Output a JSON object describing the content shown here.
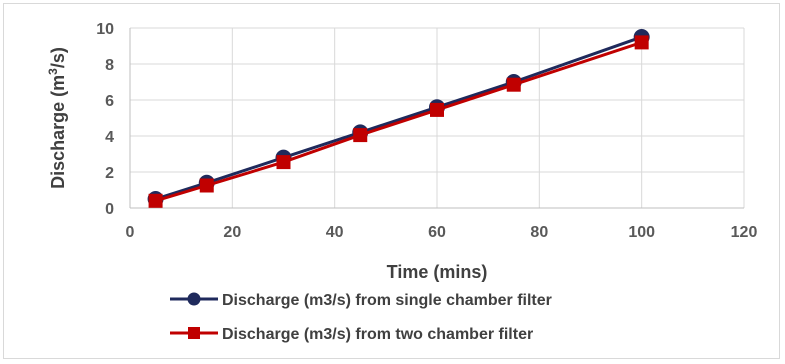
{
  "chart_data": {
    "type": "line",
    "xlabel": "Time (mins)",
    "ylabel_main": "Discharge (m",
    "ylabel_sup": "3",
    "ylabel_tail": "/s)",
    "x_ticks": [
      0,
      20,
      40,
      60,
      80,
      100,
      120
    ],
    "y_ticks": [
      0,
      2,
      4,
      6,
      8,
      10
    ],
    "xlim": [
      0,
      120
    ],
    "ylim": [
      0,
      10
    ],
    "grid": "major gridlines on both axes",
    "legend_position": "bottom",
    "series": [
      {
        "name": "Discharge (m3/s) from single chamber filter",
        "color": "#1f2a5c",
        "marker": "circle",
        "x": [
          5,
          15,
          30,
          45,
          60,
          75,
          100
        ],
        "y": [
          0.5,
          1.4,
          2.8,
          4.2,
          5.6,
          7.0,
          9.5
        ]
      },
      {
        "name": "Discharge (m3/s) from two chamber filter",
        "color": "#c00000",
        "marker": "square",
        "x": [
          5,
          15,
          30,
          45,
          60,
          75,
          100
        ],
        "y": [
          0.4,
          1.25,
          2.55,
          4.05,
          5.45,
          6.85,
          9.2
        ]
      }
    ]
  }
}
